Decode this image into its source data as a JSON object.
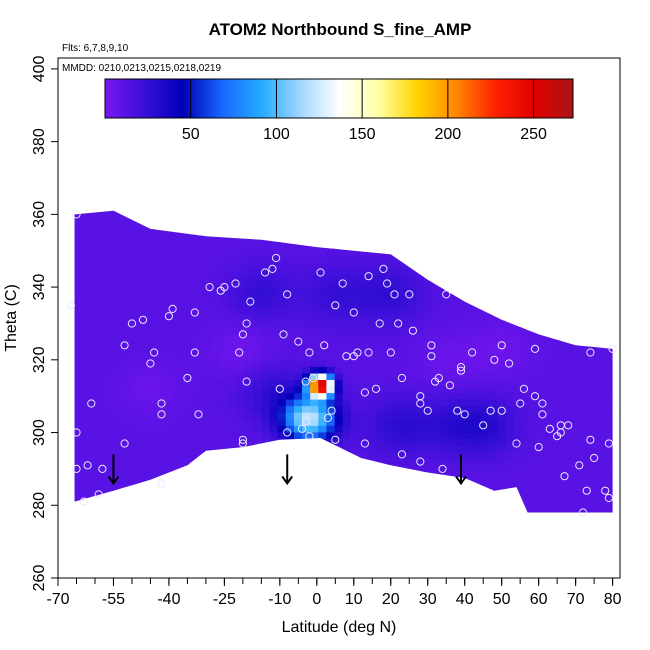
{
  "chart_data": {
    "type": "heatmap",
    "title": "ATOM2 Northbound S_fine_AMP",
    "flights_label": "Flts: 6,7,8,9,10",
    "dates_label": "MMDD: 0210,0213,0215,0218,0219",
    "xlabel": "Latitude (deg N)",
    "ylabel": "Theta (C)",
    "xlim": [
      -70,
      82
    ],
    "ylim": [
      260,
      403
    ],
    "x_ticks": [
      -70,
      -55,
      -40,
      -25,
      -10,
      0,
      10,
      20,
      30,
      40,
      50,
      60,
      70,
      80
    ],
    "y_ticks": [
      260,
      280,
      300,
      320,
      340,
      360,
      380,
      400
    ],
    "colorbar": {
      "range": [
        0,
        273
      ],
      "ticks": [
        50,
        100,
        150,
        200,
        250
      ],
      "colors": [
        "#7a16f0",
        "#3a0fd8",
        "#0000b8",
        "#1a66ff",
        "#22aaff",
        "#9fd6ff",
        "#ffffff",
        "#ffffa8",
        "#ffd400",
        "#ff8800",
        "#ff2200",
        "#e00000",
        "#aa1515"
      ]
    },
    "coverage_top": [
      [
        -65.5,
        360
      ],
      [
        -55,
        361
      ],
      [
        -45,
        356
      ],
      [
        -30,
        354
      ],
      [
        -15,
        353
      ],
      [
        0,
        351
      ],
      [
        10,
        350
      ],
      [
        20,
        349
      ],
      [
        30,
        342
      ],
      [
        40,
        336
      ],
      [
        50,
        331
      ],
      [
        60,
        327
      ],
      [
        70,
        324
      ],
      [
        80,
        323
      ]
    ],
    "coverage_bottom": [
      [
        -65.5,
        281
      ],
      [
        -55,
        284
      ],
      [
        -45,
        287
      ],
      [
        -35,
        291
      ],
      [
        -30,
        295
      ],
      [
        -20,
        296
      ],
      [
        -10,
        298
      ],
      [
        1,
        298.5
      ],
      [
        12,
        293
      ],
      [
        20,
        291
      ],
      [
        30,
        289
      ],
      [
        40,
        287.5
      ],
      [
        48,
        284
      ],
      [
        54,
        285
      ],
      [
        57,
        278
      ],
      [
        80,
        278
      ]
    ],
    "field_background": 12,
    "hotspots": [
      {
        "lat": -20,
        "theta": 323,
        "amp": -8
      },
      {
        "lat": -45,
        "theta": 312,
        "amp": -6
      },
      {
        "lat": 35,
        "theta": 320,
        "amp": -6
      },
      {
        "lat": 50,
        "theta": 323,
        "amp": -7
      },
      {
        "lat": -15,
        "theta": 338,
        "amp": 13
      },
      {
        "lat": 5,
        "theta": 338,
        "amp": 12
      },
      {
        "lat": 20,
        "theta": 338,
        "amp": 14
      },
      {
        "lat": -12,
        "theta": 311,
        "amp": 14
      },
      {
        "lat": 22,
        "theta": 302,
        "amp": 15
      },
      {
        "lat": 45,
        "theta": 302,
        "amp": 18
      },
      {
        "lat": 35,
        "theta": 302,
        "amp": 10
      },
      {
        "lat": -2,
        "theta": 304,
        "amp": 110
      },
      {
        "lat": 1,
        "theta": 313,
        "amp": 250
      }
    ],
    "samples": [
      [
        -65,
        360
      ],
      [
        -66.5,
        335
      ],
      [
        -65,
        300
      ],
      [
        -65,
        290
      ],
      [
        -62,
        291
      ],
      [
        -63,
        281
      ],
      [
        -59,
        283
      ],
      [
        -58,
        290
      ],
      [
        -61,
        308
      ],
      [
        -52,
        297
      ],
      [
        -52,
        324
      ],
      [
        -50,
        330
      ],
      [
        -47,
        331
      ],
      [
        -45,
        319
      ],
      [
        -44,
        322
      ],
      [
        -42,
        305
      ],
      [
        -42,
        286
      ],
      [
        -42,
        308
      ],
      [
        -40,
        332
      ],
      [
        -39,
        334
      ],
      [
        -35,
        315
      ],
      [
        -33,
        322
      ],
      [
        -33,
        333
      ],
      [
        -32,
        305
      ],
      [
        -29,
        340
      ],
      [
        -26,
        339
      ],
      [
        -25,
        340
      ],
      [
        -22,
        341
      ],
      [
        -21,
        322
      ],
      [
        -20,
        297
      ],
      [
        -20,
        298
      ],
      [
        -20,
        327
      ],
      [
        -19,
        330
      ],
      [
        -19,
        314
      ],
      [
        -18,
        336
      ],
      [
        -14,
        344
      ],
      [
        -12,
        345
      ],
      [
        -11,
        348
      ],
      [
        -9,
        327
      ],
      [
        -10,
        312
      ],
      [
        -8,
        300
      ],
      [
        -8,
        338
      ],
      [
        -5,
        325
      ],
      [
        -4,
        301
      ],
      [
        -3,
        314
      ],
      [
        -3,
        303
      ],
      [
        -2,
        322
      ],
      [
        -2,
        299
      ],
      [
        -1,
        315
      ],
      [
        1,
        344
      ],
      [
        2,
        324
      ],
      [
        3,
        304
      ],
      [
        4,
        306
      ],
      [
        5,
        298
      ],
      [
        5,
        335
      ],
      [
        7,
        341
      ],
      [
        8,
        321
      ],
      [
        10,
        321
      ],
      [
        10,
        333
      ],
      [
        11,
        322
      ],
      [
        13,
        297
      ],
      [
        13,
        311
      ],
      [
        14,
        322
      ],
      [
        14,
        343
      ],
      [
        16,
        312
      ],
      [
        17,
        330
      ],
      [
        18,
        345
      ],
      [
        19,
        341
      ],
      [
        20,
        322
      ],
      [
        21,
        338
      ],
      [
        22,
        330
      ],
      [
        23,
        315
      ],
      [
        23,
        294
      ],
      [
        25,
        338
      ],
      [
        26,
        328
      ],
      [
        28,
        310
      ],
      [
        28,
        308
      ],
      [
        28,
        292
      ],
      [
        30,
        306
      ],
      [
        31,
        324
      ],
      [
        31,
        321
      ],
      [
        32,
        314
      ],
      [
        33,
        315
      ],
      [
        34,
        290
      ],
      [
        35,
        338
      ],
      [
        36,
        313
      ],
      [
        38,
        306
      ],
      [
        39,
        317
      ],
      [
        39,
        318
      ],
      [
        40,
        305
      ],
      [
        42,
        322
      ],
      [
        45,
        302
      ],
      [
        47,
        306
      ],
      [
        48,
        320
      ],
      [
        50,
        306
      ],
      [
        50,
        324
      ],
      [
        52,
        319
      ],
      [
        54,
        297
      ],
      [
        55,
        308
      ],
      [
        56,
        312
      ],
      [
        59,
        323
      ],
      [
        59,
        310
      ],
      [
        60,
        296
      ],
      [
        61,
        305
      ],
      [
        61,
        308
      ],
      [
        63,
        301
      ],
      [
        65,
        299
      ],
      [
        66,
        302
      ],
      [
        66,
        300
      ],
      [
        67,
        288
      ],
      [
        68,
        302
      ],
      [
        71,
        291
      ],
      [
        72,
        278
      ],
      [
        73,
        284
      ],
      [
        74,
        322
      ],
      [
        74,
        298
      ],
      [
        75,
        293
      ],
      [
        78,
        284
      ],
      [
        79,
        282
      ],
      [
        80,
        323
      ],
      [
        79,
        297
      ]
    ],
    "arrows": [
      -55,
      -8,
      39
    ]
  }
}
